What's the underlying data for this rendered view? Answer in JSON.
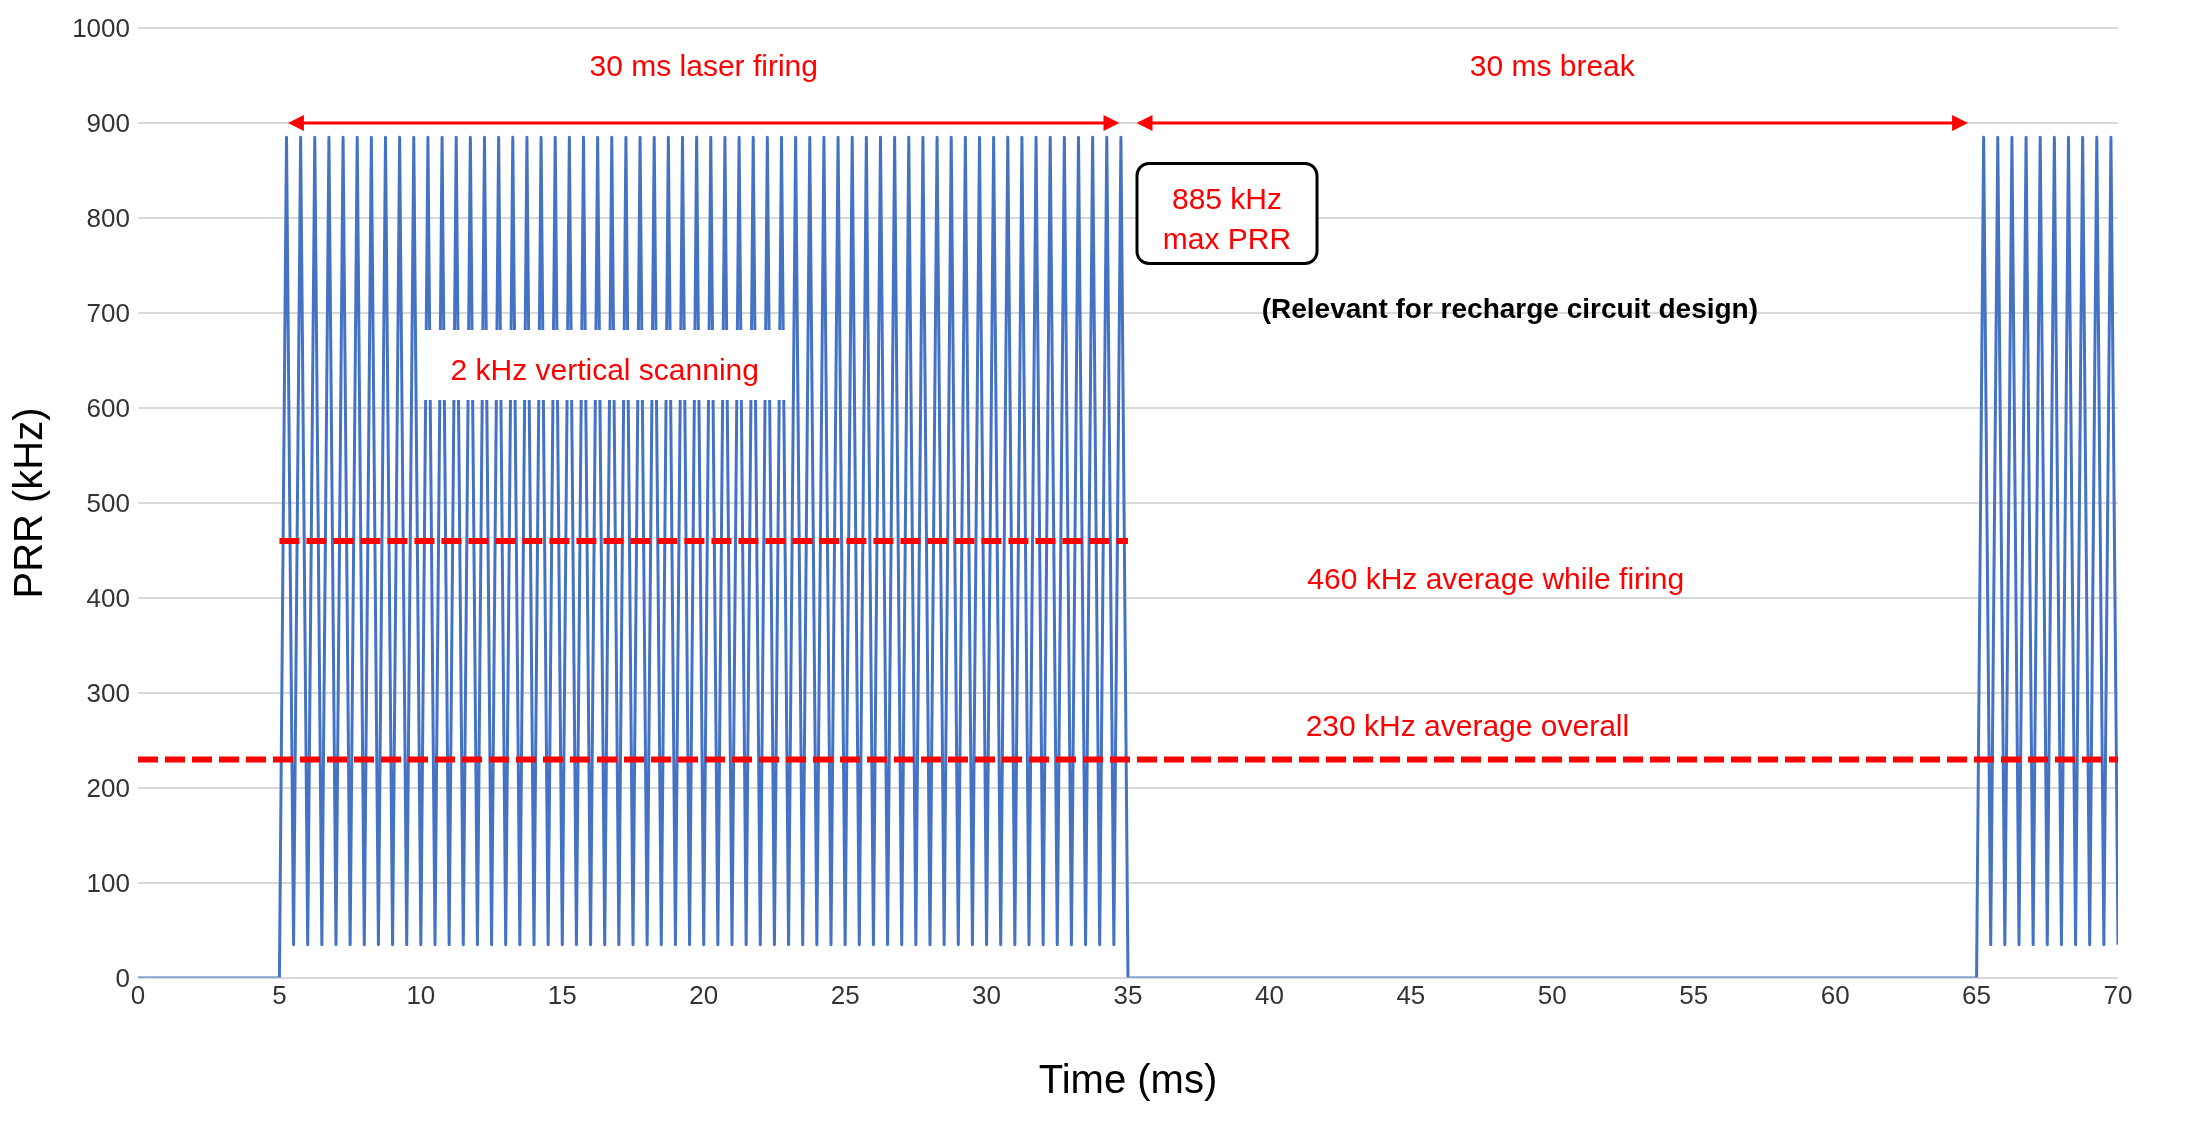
{
  "chart_data": {
    "type": "line",
    "xlabel": "Time (ms)",
    "ylabel": "PRR (kHz)",
    "xlim": [
      0,
      70
    ],
    "xticks": [
      0,
      5,
      10,
      15,
      20,
      25,
      30,
      35,
      40,
      45,
      50,
      55,
      60,
      65,
      70
    ],
    "ylim": [
      0,
      1000
    ],
    "yticks": [
      0,
      100,
      200,
      300,
      400,
      500,
      600,
      700,
      800,
      900,
      1000
    ],
    "grid": "y",
    "legend": false,
    "marker": "none",
    "series": [
      {
        "color": "#4472c4",
        "line_style": "solid",
        "x": [
          0,
          5,
          5.25,
          5.5,
          5.75,
          6,
          6.25,
          6.5,
          6.75,
          7,
          7.25,
          7.5,
          7.75,
          8,
          8.25,
          8.5,
          8.75,
          9,
          9.25,
          9.5,
          9.75,
          10,
          10.25,
          10.5,
          10.75,
          11,
          11.25,
          11.5,
          11.75,
          12,
          12.25,
          12.5,
          12.75,
          13,
          13.25,
          13.5,
          13.75,
          14,
          14.25,
          14.5,
          14.75,
          15,
          15.25,
          15.5,
          15.75,
          16,
          16.25,
          16.5,
          16.75,
          17,
          17.25,
          17.5,
          17.75,
          18,
          18.25,
          18.5,
          18.75,
          19,
          19.25,
          19.5,
          19.75,
          20,
          20.25,
          20.5,
          20.75,
          21,
          21.25,
          21.5,
          21.75,
          22,
          22.25,
          22.5,
          22.75,
          23,
          23.25,
          23.5,
          23.75,
          24,
          24.25,
          24.5,
          24.75,
          25,
          25.25,
          25.5,
          25.75,
          26,
          26.25,
          26.5,
          26.75,
          27,
          27.25,
          27.5,
          27.75,
          28,
          28.25,
          28.5,
          28.75,
          29,
          29.25,
          29.5,
          29.75,
          30,
          30.25,
          30.5,
          30.75,
          31,
          31.25,
          31.5,
          31.75,
          32,
          32.25,
          32.5,
          32.75,
          33,
          33.25,
          33.5,
          33.75,
          34,
          34.25,
          34.5,
          34.75,
          35,
          65,
          65.25,
          65.5,
          65.75,
          66,
          66.25,
          66.5,
          66.75,
          67,
          67.25,
          67.5,
          67.75,
          68,
          68.25,
          68.5,
          68.75,
          69,
          69.25,
          69.5,
          69.75,
          70
        ],
        "values": [
          0,
          0,
          885,
          35,
          885,
          35,
          885,
          35,
          885,
          35,
          885,
          35,
          885,
          35,
          885,
          35,
          885,
          35,
          885,
          35,
          885,
          35,
          885,
          35,
          885,
          35,
          885,
          35,
          885,
          35,
          885,
          35,
          885,
          35,
          885,
          35,
          885,
          35,
          885,
          35,
          885,
          35,
          885,
          35,
          885,
          35,
          885,
          35,
          885,
          35,
          885,
          35,
          885,
          35,
          885,
          35,
          885,
          35,
          885,
          35,
          885,
          35,
          885,
          35,
          885,
          35,
          885,
          35,
          885,
          35,
          885,
          35,
          885,
          35,
          885,
          35,
          885,
          35,
          885,
          35,
          885,
          35,
          885,
          35,
          885,
          35,
          885,
          35,
          885,
          35,
          885,
          35,
          885,
          35,
          885,
          35,
          885,
          35,
          885,
          35,
          885,
          35,
          885,
          35,
          885,
          35,
          885,
          35,
          885,
          35,
          885,
          35,
          885,
          35,
          885,
          35,
          885,
          35,
          885,
          35,
          885,
          0,
          0,
          885,
          35,
          885,
          35,
          885,
          35,
          885,
          35,
          885,
          35,
          885,
          35,
          885,
          35,
          885,
          35,
          885,
          35,
          885,
          35
        ]
      },
      {
        "color": "#ff0000",
        "line_style": "dashed",
        "x": [
          5,
          35
        ],
        "values": [
          460,
          460
        ]
      },
      {
        "color": "#ff0000",
        "line_style": "dashed",
        "x": [
          0,
          70
        ],
        "values": [
          230,
          230
        ]
      }
    ],
    "annotations": [
      "30 ms laser firing",
      "30 ms break",
      "885 kHz max PRR",
      "(Relevant for recharge circuit design)",
      "2 kHz vertical scanning",
      "460 kHz average while firing",
      "230 kHz average overall"
    ]
  }
}
